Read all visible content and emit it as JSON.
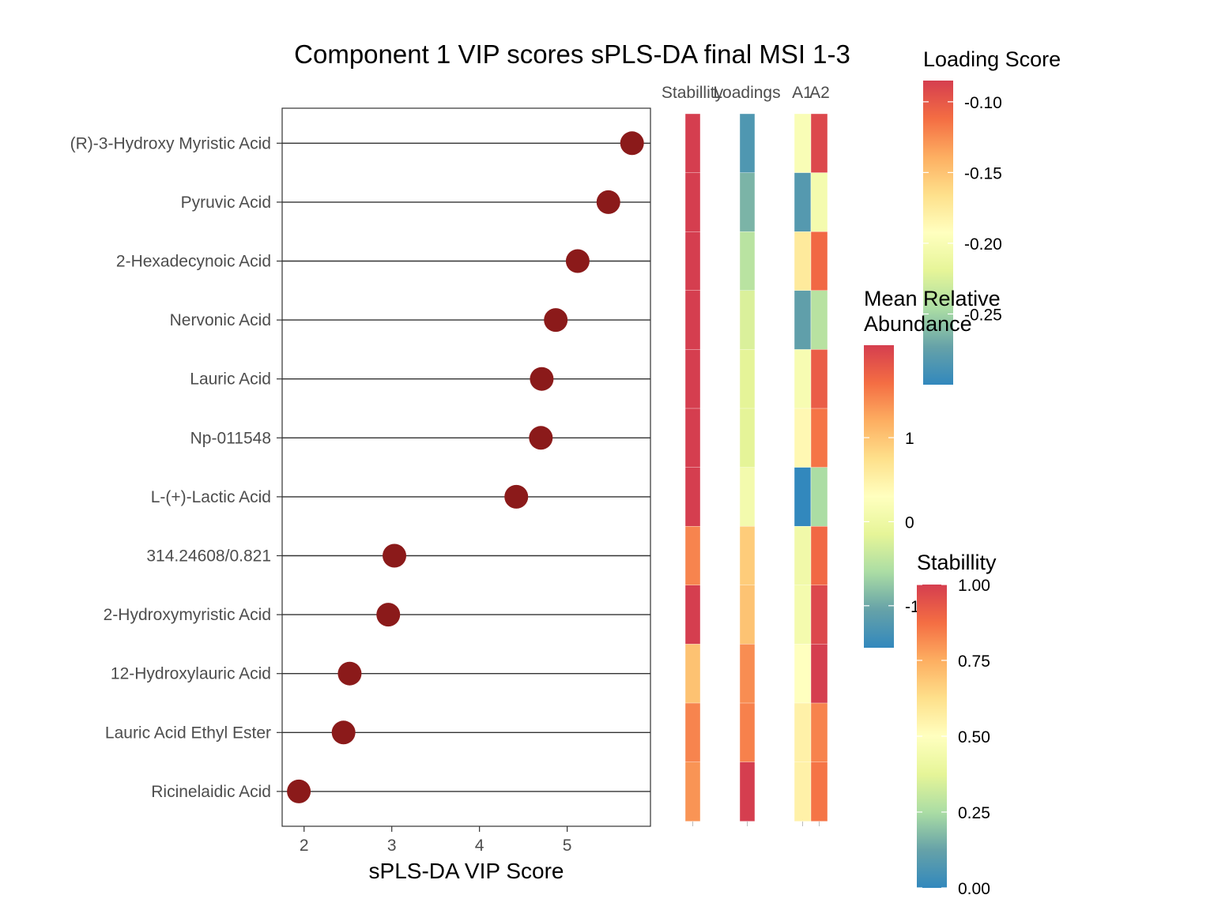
{
  "chart_data": {
    "type": "scatter",
    "title": "Component 1 VIP scores sPLS-DA final MSI 1-3",
    "xlabel": "sPLS-DA VIP Score",
    "ylabel": "",
    "xlim": [
      1.75,
      5.95
    ],
    "xticks": [
      2,
      3,
      4,
      5
    ],
    "grid": false,
    "categories": [
      "(R)-3-Hydroxy Myristic Acid",
      "Pyruvic Acid",
      "2-Hexadecynoic Acid",
      "Nervonic Acid",
      "Lauric Acid",
      "Np-011548",
      "L-(+)-Lactic Acid",
      "314.24608/0.821",
      "2-Hydroxymyristic Acid",
      "12-Hydroxylauric Acid",
      "Lauric Acid Ethyl Ester",
      "Ricinelaidic Acid"
    ],
    "values": [
      5.74,
      5.47,
      5.12,
      4.87,
      4.71,
      4.7,
      4.42,
      3.03,
      2.96,
      2.52,
      2.45,
      1.94
    ],
    "point_color": "#8b1a1a",
    "heatmap": {
      "columns": [
        "Stabillity",
        "Loadings",
        "A1",
        "A2"
      ],
      "stability": [
        1.0,
        1.0,
        1.0,
        1.0,
        1.0,
        1.0,
        1.0,
        0.83,
        1.0,
        0.7,
        0.83,
        0.8
      ],
      "loadings": [
        -0.285,
        -0.265,
        -0.24,
        -0.225,
        -0.22,
        -0.22,
        -0.205,
        -0.155,
        -0.15,
        -0.125,
        -0.12,
        -0.085
      ],
      "A1": [
        0.2,
        -1.2,
        0.6,
        -1.1,
        0.15,
        0.4,
        -1.5,
        0.05,
        0.1,
        0.3,
        0.5,
        0.5
      ],
      "A2": [
        2.0,
        0.1,
        1.7,
        -0.5,
        1.8,
        1.6,
        -0.6,
        1.7,
        2.0,
        2.1,
        1.5,
        1.6
      ]
    },
    "legends": [
      {
        "title": "Loading Score",
        "ticks": [
          "-0.10",
          "-0.15",
          "-0.20",
          "-0.25"
        ],
        "tick_values": [
          -0.1,
          -0.15,
          -0.2,
          -0.25
        ],
        "range": [
          -0.085,
          -0.3
        ]
      },
      {
        "title_line1": "Mean Relative",
        "title_line2": "Abundance",
        "ticks": [
          "1",
          "0",
          "-1"
        ],
        "tick_values": [
          1,
          0,
          -1
        ],
        "range": [
          2.1,
          -1.5
        ]
      },
      {
        "title": "Stabillity",
        "ticks": [
          "1.00",
          "0.75",
          "0.50",
          "0.25",
          "0.00"
        ],
        "tick_values": [
          1.0,
          0.75,
          0.5,
          0.25,
          0.0
        ],
        "range": [
          1.0,
          0.0
        ]
      }
    ],
    "palette": [
      "#d53e4f",
      "#f46d43",
      "#fdae61",
      "#fee08b",
      "#ffffbf",
      "#e6f598",
      "#abdda4",
      "#66a2a8",
      "#3288bd"
    ]
  }
}
